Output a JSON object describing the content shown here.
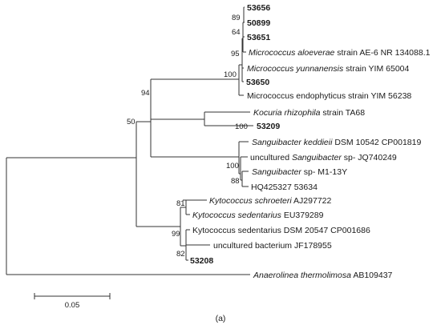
{
  "leaves": {
    "l53656": "53656",
    "l50899": "50899",
    "l53651": "53651",
    "aloeverae_sp": "Micrococcus aloeverae",
    "aloeverae_rest": " strain AE-6 NR 134088.1",
    "yunnanensis_sp": "Micrococcus yunnanensis",
    "yunnanensis_rest": " strain YIM 65004",
    "l53650": "53650",
    "endophyticus": "Micrococcus endophyticus strain YIM 56238",
    "kocuria_sp": "Kocuria rhizophila",
    "kocuria_rest": " strain TA68",
    "l53209": "53209",
    "keddieii_sp": "Sanguibacter keddieii",
    "keddieii_rest": " DSM 10542 CP001819",
    "uncult_sang_a": "uncultured ",
    "uncult_sang_b": "Sanguibacter",
    "uncult_sang_c": " sp- JQ740249",
    "sang_m1_sp": "Sanguibacter",
    "sang_m1_rest": " sp- M1-13Y",
    "hq425327": "HQ425327 53634",
    "schroeteri_sp": "Kytococcus schroeteri",
    "schroeteri_rest": " AJ297722",
    "sedentarius_sp": "Kytococcus sedentarius",
    "sedentarius_rest": " EU379289",
    "kyto_dsm": "Kytococcus sedentarius DSM 20547 CP001686",
    "uncult_bact": "uncultured bacterium JF178955",
    "l53208": "53208",
    "anaero_sp": "Anaerolinea thermolimosa",
    "anaero_rest": " AB109437"
  },
  "bootstrap": {
    "b89": "89",
    "b64": "64",
    "b95": "95",
    "b100_micro": "100",
    "b94": "94",
    "b100_kocuria": "100",
    "b50": "50",
    "b100_sang": "100",
    "b88": "88",
    "b81": "81",
    "b99": "99",
    "b82": "82"
  },
  "scale_bar": {
    "value": 0.05,
    "label": "0.05"
  },
  "panel_label": "(a)"
}
